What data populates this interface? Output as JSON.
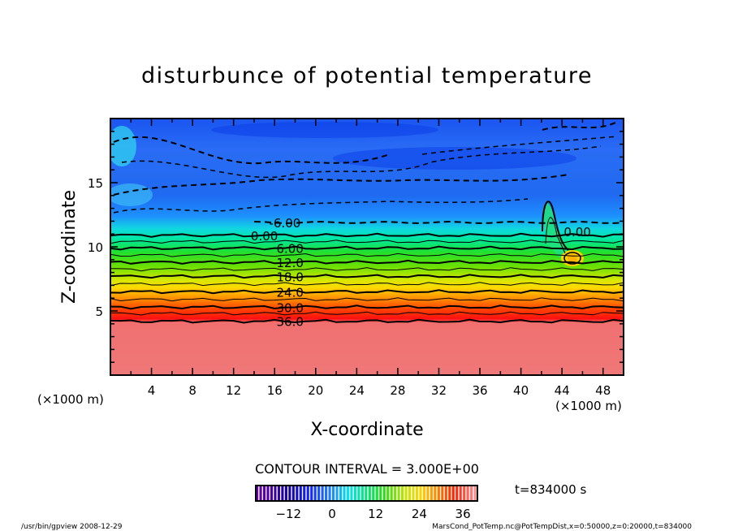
{
  "chart_data": {
    "type": "heatmap",
    "subtype": "filled contour",
    "title": "disturbunce of potential temperature",
    "xlabel": "X-coordinate",
    "ylabel": "Z-coordinate",
    "x_unit_label": "(×1000 m)",
    "y_unit_label": "(×1000 m)",
    "xlim": [
      0,
      50
    ],
    "ylim": [
      0,
      20
    ],
    "x_ticks": [
      4,
      8,
      12,
      16,
      20,
      24,
      28,
      32,
      36,
      40,
      44,
      48
    ],
    "y_ticks": [
      5,
      10,
      15
    ],
    "contour_interval_label": "CONTOUR INTERVAL = 3.000E+00",
    "time_label": "t=834000 s",
    "contour_labels": [
      {
        "text": "-6.00",
        "value": -6,
        "z": 11.9,
        "x": 17,
        "dashed": true
      },
      {
        "text": "0.00",
        "value": 0,
        "z": 10.9,
        "x": 15,
        "dashed": false
      },
      {
        "text": "6.00",
        "value": 6,
        "z": 9.9,
        "x": 17.5,
        "dashed": false
      },
      {
        "text": "12.0",
        "value": 12,
        "z": 8.8,
        "x": 17.5,
        "dashed": false
      },
      {
        "text": "18.0",
        "value": 18,
        "z": 7.7,
        "x": 17.5,
        "dashed": false
      },
      {
        "text": "24.0",
        "value": 24,
        "z": 6.5,
        "x": 17.5,
        "dashed": false
      },
      {
        "text": "30.0",
        "value": 30,
        "z": 5.3,
        "x": 17.5,
        "dashed": false
      },
      {
        "text": "36.0",
        "value": 36,
        "z": 4.2,
        "x": 17.5,
        "dashed": false
      },
      {
        "text": "0.00",
        "value": 0,
        "z": 11.2,
        "x": 45.5,
        "dashed": false
      }
    ],
    "colorbar": {
      "range": [
        -21,
        40
      ],
      "ticks": [
        -12,
        0,
        12,
        24,
        36
      ]
    },
    "grid": false
  },
  "footer": {
    "left": "/usr/bin/gpview   2008-12-29",
    "right": "MarsCond_PotTemp.nc@PotTempDist,x=0:50000,z=0:20000,t=834000"
  }
}
